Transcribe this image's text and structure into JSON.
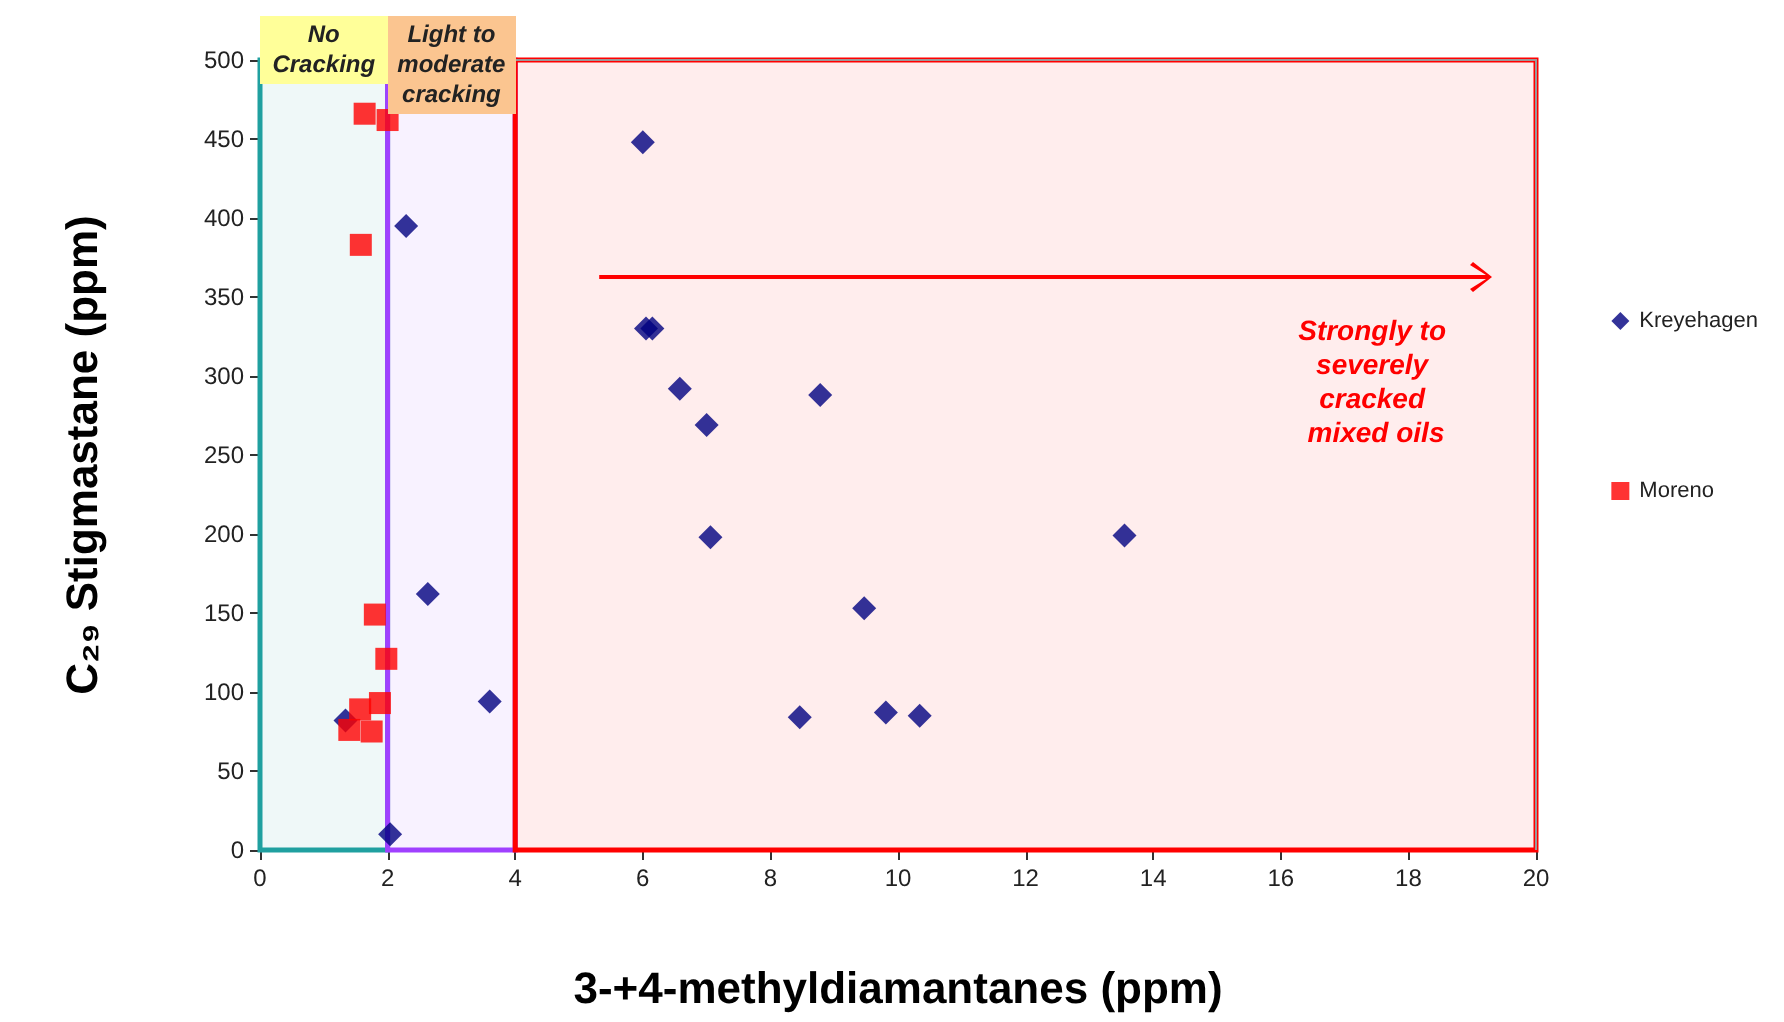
{
  "chart_data": {
    "type": "scatter",
    "xlabel": "3-+4-methyldiamantanes (ppm)",
    "ylabel": "C₂₉ Stigmastane (ppm)",
    "series": [
      {
        "name": "Kreyehagen",
        "color": "#000080",
        "marker": "diamond",
        "x": [
          2.29,
          2.63,
          3.6,
          2.04,
          1.34,
          6.0,
          6.05,
          6.15,
          6.58,
          7.0,
          7.06,
          8.78,
          9.47,
          8.46,
          9.81,
          10.34,
          13.55
        ],
        "values": [
          395,
          162,
          94,
          10,
          82,
          448,
          330,
          330,
          292,
          269,
          198,
          288,
          153,
          84,
          87,
          85,
          199
        ]
      },
      {
        "name": "Moreno",
        "color": "#ff0000",
        "marker": "square",
        "x": [
          1.64,
          2.0,
          1.58,
          1.8,
          1.98,
          1.57,
          1.88,
          1.4,
          1.75
        ],
        "values": [
          466,
          462,
          383,
          149,
          121,
          89,
          93,
          76,
          75
        ]
      }
    ],
    "xlim": [
      0,
      20
    ],
    "xticks": [
      0,
      2,
      4,
      6,
      8,
      10,
      12,
      14,
      16,
      18,
      20
    ],
    "ylim": [
      0,
      500
    ],
    "yticks": [
      0,
      50,
      100,
      150,
      200,
      250,
      300,
      350,
      400,
      450,
      500
    ],
    "bands": [
      {
        "axis": "x",
        "from": 0,
        "to": 2,
        "label": "No Cracking",
        "color": "#20a0a0"
      },
      {
        "axis": "x",
        "from": 2,
        "to": 4,
        "label": "Light to moderate cracking",
        "color": "#a040ff"
      },
      {
        "axis": "x",
        "from": 4,
        "to": 20,
        "label": "Strongly to severely cracked mixed oils",
        "color": "#ff0000"
      }
    ],
    "grid": false,
    "legend": "right"
  }
}
